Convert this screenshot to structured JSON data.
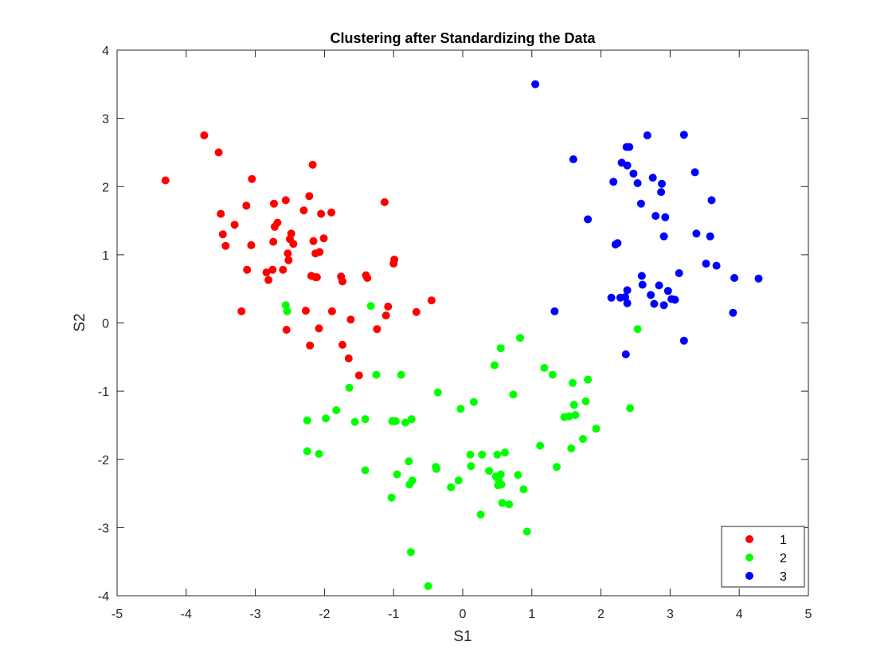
{
  "chart_data": {
    "type": "scatter",
    "title": "Clustering after Standardizing the Data",
    "xlabel": "S1",
    "ylabel": "S2",
    "xlim": [
      -5,
      5
    ],
    "ylim": [
      -4,
      4
    ],
    "xticks": [
      -5,
      -4,
      -3,
      -2,
      -1,
      0,
      1,
      2,
      3,
      4,
      5
    ],
    "yticks": [
      -4,
      -3,
      -2,
      -1,
      0,
      1,
      2,
      3,
      4
    ],
    "grid": false,
    "legend_position": "bottom-right",
    "series": [
      {
        "name": "1",
        "color": "#ff0000",
        "points": [
          [
            -4.3,
            2.09
          ],
          [
            -3.74,
            2.75
          ],
          [
            -3.53,
            2.5
          ],
          [
            -3.5,
            1.6
          ],
          [
            -3.47,
            1.3
          ],
          [
            -3.43,
            1.13
          ],
          [
            -3.3,
            1.44
          ],
          [
            -3.2,
            0.17
          ],
          [
            -3.13,
            1.72
          ],
          [
            -3.12,
            0.78
          ],
          [
            -3.06,
            1.14
          ],
          [
            -3.05,
            2.11
          ],
          [
            -2.84,
            0.74
          ],
          [
            -2.81,
            0.63
          ],
          [
            -2.75,
            0.78
          ],
          [
            -2.74,
            1.19
          ],
          [
            -2.73,
            1.75
          ],
          [
            -2.72,
            1.41
          ],
          [
            -2.68,
            1.47
          ],
          [
            -2.6,
            0.78
          ],
          [
            -2.56,
            1.8
          ],
          [
            -2.55,
            -0.1
          ],
          [
            -2.53,
            1.02
          ],
          [
            -2.52,
            0.92
          ],
          [
            -2.5,
            1.23
          ],
          [
            -2.48,
            1.31
          ],
          [
            -2.45,
            1.16
          ],
          [
            -2.3,
            1.65
          ],
          [
            -2.27,
            0.18
          ],
          [
            -2.22,
            1.86
          ],
          [
            -2.21,
            -0.33
          ],
          [
            -2.19,
            0.69
          ],
          [
            -2.17,
            2.32
          ],
          [
            -2.16,
            1.2
          ],
          [
            -2.13,
            1.02
          ],
          [
            -2.13,
            0.67
          ],
          [
            -2.11,
            0.67
          ],
          [
            -2.08,
            -0.08
          ],
          [
            -2.07,
            1.04
          ],
          [
            -2.05,
            1.6
          ],
          [
            -2.01,
            1.24
          ],
          [
            -1.9,
            1.62
          ],
          [
            -1.89,
            0.17
          ],
          [
            -1.76,
            0.68
          ],
          [
            -1.74,
            0.61
          ],
          [
            -1.74,
            -0.32
          ],
          [
            -1.65,
            -0.52
          ],
          [
            -1.62,
            0.05
          ],
          [
            -1.5,
            -0.77
          ],
          [
            -1.4,
            0.7
          ],
          [
            -1.38,
            0.66
          ],
          [
            -1.24,
            -0.09
          ],
          [
            -1.13,
            1.77
          ],
          [
            -1.11,
            0.11
          ],
          [
            -1.08,
            0.24
          ],
          [
            -1.0,
            0.87
          ],
          [
            -0.99,
            0.93
          ],
          [
            -0.67,
            0.16
          ],
          [
            -0.45,
            0.33
          ]
        ]
      },
      {
        "name": "2",
        "color": "#00ff00",
        "points": [
          [
            -2.56,
            0.26
          ],
          [
            -2.54,
            0.17
          ],
          [
            -2.25,
            -1.43
          ],
          [
            -2.25,
            -1.88
          ],
          [
            -2.08,
            -1.92
          ],
          [
            -1.98,
            -1.4
          ],
          [
            -1.83,
            -1.28
          ],
          [
            -1.64,
            -0.95
          ],
          [
            -1.56,
            -1.45
          ],
          [
            -1.41,
            -1.41
          ],
          [
            -1.41,
            -2.16
          ],
          [
            -1.33,
            0.25
          ],
          [
            -1.25,
            -0.76
          ],
          [
            -1.03,
            -2.56
          ],
          [
            -1.02,
            -1.44
          ],
          [
            -0.97,
            -1.44
          ],
          [
            -0.95,
            -2.22
          ],
          [
            -0.89,
            -0.76
          ],
          [
            -0.83,
            -1.46
          ],
          [
            -0.78,
            -2.03
          ],
          [
            -0.77,
            -2.37
          ],
          [
            -0.75,
            -3.36
          ],
          [
            -0.74,
            -1.41
          ],
          [
            -0.73,
            -2.31
          ],
          [
            -0.5,
            -3.86
          ],
          [
            -0.39,
            -2.11
          ],
          [
            -0.38,
            -2.14
          ],
          [
            -0.36,
            -1.02
          ],
          [
            -0.17,
            -2.41
          ],
          [
            -0.06,
            -2.31
          ],
          [
            -0.03,
            -1.26
          ],
          [
            0.11,
            -1.93
          ],
          [
            0.12,
            -2.1
          ],
          [
            0.16,
            -1.16
          ],
          [
            0.26,
            -2.81
          ],
          [
            0.28,
            -1.93
          ],
          [
            0.38,
            -2.17
          ],
          [
            0.46,
            -0.62
          ],
          [
            0.48,
            -2.25
          ],
          [
            0.5,
            -1.93
          ],
          [
            0.51,
            -2.38
          ],
          [
            0.52,
            -2.3
          ],
          [
            0.55,
            -0.37
          ],
          [
            0.55,
            -2.22
          ],
          [
            0.56,
            -2.37
          ],
          [
            0.57,
            -2.64
          ],
          [
            0.61,
            -1.9
          ],
          [
            0.67,
            -2.66
          ],
          [
            0.73,
            -1.05
          ],
          [
            0.8,
            -2.23
          ],
          [
            0.83,
            -0.22
          ],
          [
            0.88,
            -2.44
          ],
          [
            0.93,
            -3.06
          ],
          [
            1.12,
            -1.8
          ],
          [
            1.18,
            -0.66
          ],
          [
            1.3,
            -0.76
          ],
          [
            1.36,
            -2.11
          ],
          [
            1.47,
            -1.38
          ],
          [
            1.54,
            -1.37
          ],
          [
            1.57,
            -1.84
          ],
          [
            1.59,
            -0.88
          ],
          [
            1.61,
            -1.2
          ],
          [
            1.63,
            -1.35
          ],
          [
            1.74,
            -1.7
          ],
          [
            1.78,
            -1.15
          ],
          [
            1.81,
            -0.83
          ],
          [
            1.93,
            -1.55
          ],
          [
            2.42,
            -1.25
          ],
          [
            2.53,
            -0.09
          ]
        ]
      },
      {
        "name": "3",
        "color": "#0000ff",
        "points": [
          [
            1.05,
            3.5
          ],
          [
            1.33,
            0.17
          ],
          [
            1.6,
            2.4
          ],
          [
            1.81,
            1.52
          ],
          [
            2.15,
            0.37
          ],
          [
            2.18,
            2.07
          ],
          [
            2.21,
            1.15
          ],
          [
            2.24,
            1.17
          ],
          [
            2.28,
            0.37
          ],
          [
            2.3,
            2.35
          ],
          [
            2.35,
            0.38
          ],
          [
            2.36,
            -0.46
          ],
          [
            2.37,
            2.58
          ],
          [
            2.38,
            0.29
          ],
          [
            2.38,
            0.48
          ],
          [
            2.38,
            2.31
          ],
          [
            2.41,
            2.58
          ],
          [
            2.47,
            2.19
          ],
          [
            2.53,
            2.05
          ],
          [
            2.58,
            1.75
          ],
          [
            2.59,
            0.69
          ],
          [
            2.6,
            0.56
          ],
          [
            2.67,
            2.75
          ],
          [
            2.72,
            0.41
          ],
          [
            2.75,
            2.13
          ],
          [
            2.77,
            0.28
          ],
          [
            2.79,
            1.57
          ],
          [
            2.84,
            0.55
          ],
          [
            2.87,
            1.92
          ],
          [
            2.88,
            2.04
          ],
          [
            2.91,
            1.27
          ],
          [
            2.91,
            0.26
          ],
          [
            2.93,
            1.55
          ],
          [
            2.97,
            0.47
          ],
          [
            3.02,
            0.35
          ],
          [
            3.07,
            0.34
          ],
          [
            3.13,
            0.73
          ],
          [
            3.2,
            2.76
          ],
          [
            3.2,
            -0.26
          ],
          [
            3.36,
            2.21
          ],
          [
            3.38,
            1.31
          ],
          [
            3.52,
            0.87
          ],
          [
            3.58,
            1.27
          ],
          [
            3.6,
            1.8
          ],
          [
            3.67,
            0.84
          ],
          [
            3.91,
            0.15
          ],
          [
            3.93,
            0.66
          ],
          [
            4.28,
            0.65
          ]
        ]
      }
    ]
  }
}
